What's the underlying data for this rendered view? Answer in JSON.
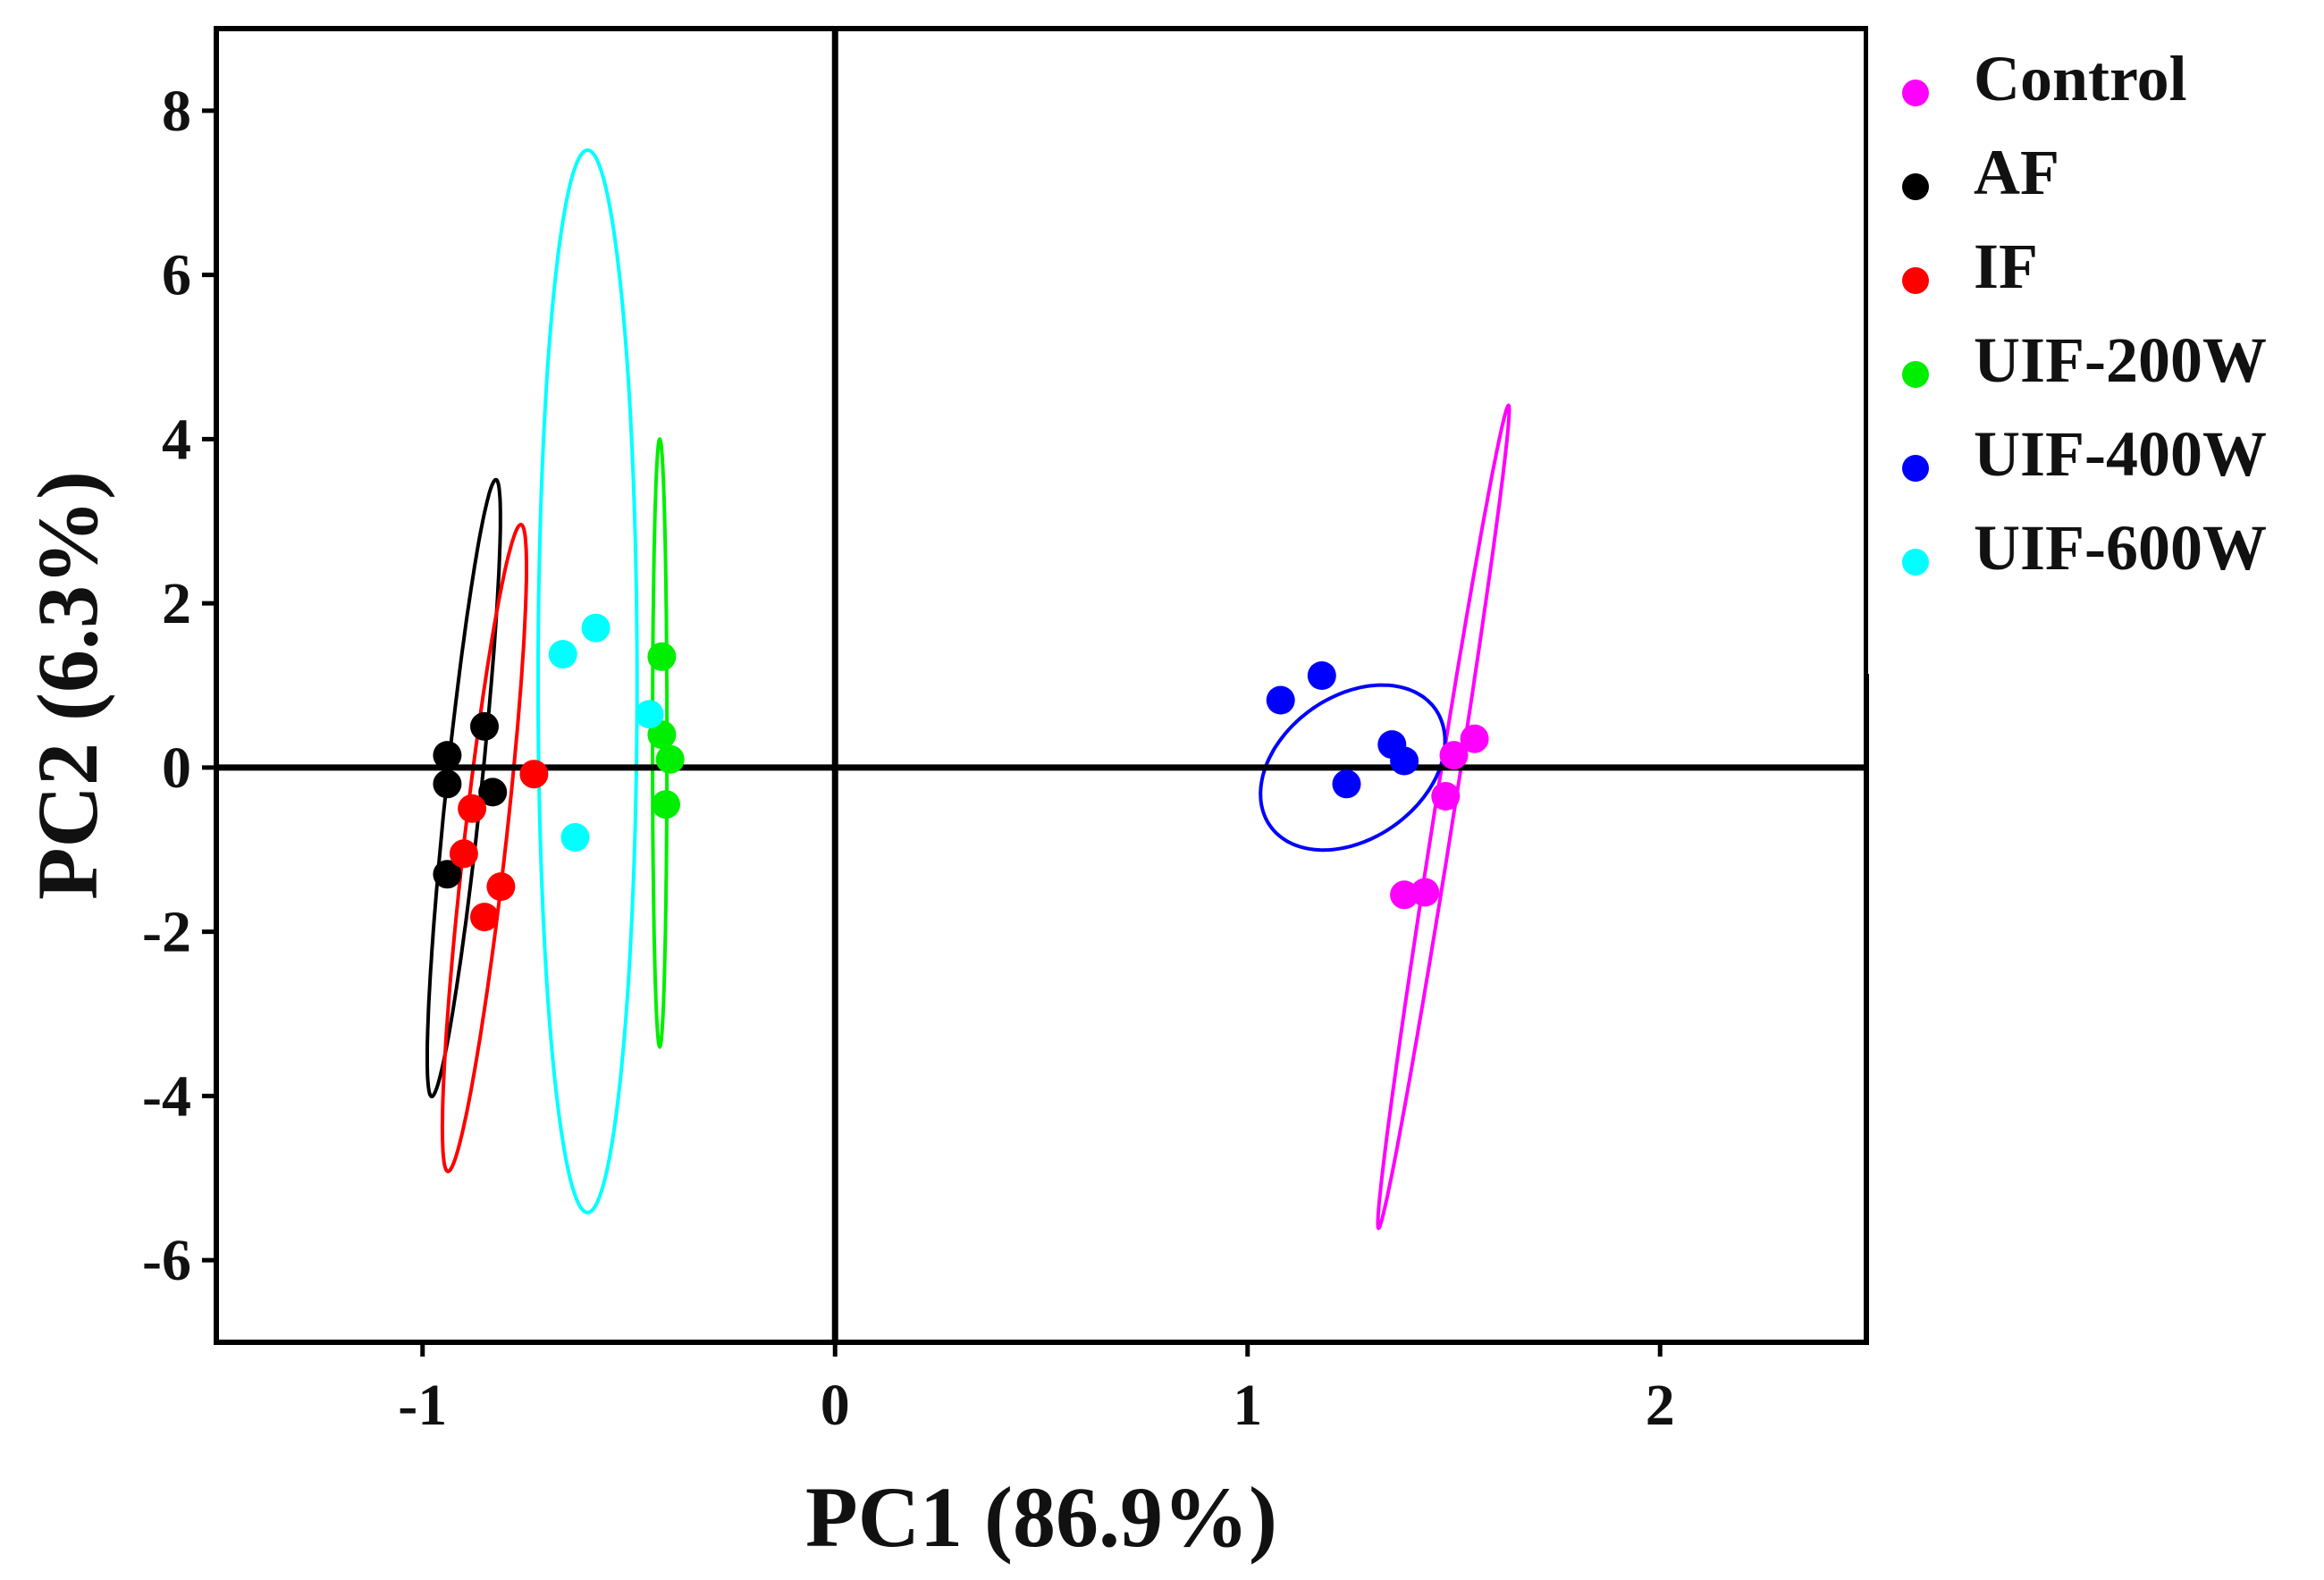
{
  "chart_data": {
    "type": "scatter",
    "title": "",
    "xlabel": "PC1 (86.9%)",
    "ylabel": "PC2 (6.3%)",
    "xlim": [
      -1.5,
      2.5
    ],
    "ylim": [
      -7,
      9
    ],
    "xticks": [
      -1,
      0,
      1,
      2
    ],
    "xtick_labels": [
      "-1",
      "0",
      "1",
      "2"
    ],
    "yticks": [
      -6,
      -4,
      -2,
      0,
      2,
      4,
      6,
      8
    ],
    "ytick_labels": [
      "-6",
      "-4",
      "-2",
      "0",
      "2",
      "4",
      "6",
      "8"
    ],
    "grid": false,
    "zero_lines": true,
    "legend_position": "right-top",
    "series": [
      {
        "name": "Control",
        "color": "#ff00ff",
        "points": [
          [
            1.5,
            0.15
          ],
          [
            1.55,
            0.35
          ],
          [
            1.48,
            -0.35
          ],
          [
            1.38,
            -1.55
          ],
          [
            1.43,
            -1.52
          ]
        ],
        "ellipse": {
          "cx": 1.475,
          "cy": -0.6,
          "rx": 5.05,
          "ry": 0.094,
          "angle_deg": 82.83
        }
      },
      {
        "name": "AF",
        "color": "#000000",
        "points": [
          [
            -0.85,
            0.5
          ],
          [
            -0.94,
            0.15
          ],
          [
            -0.94,
            -0.2
          ],
          [
            -0.83,
            -0.3
          ],
          [
            -0.94,
            -1.3
          ]
        ],
        "ellipse": {
          "cx": -0.9,
          "cy": -0.25,
          "rx": 3.769,
          "ry": 0.1705,
          "angle_deg": 85.26
        }
      },
      {
        "name": "IF",
        "color": "#ff0000",
        "points": [
          [
            -0.73,
            -0.08
          ],
          [
            -0.88,
            -0.5
          ],
          [
            -0.9,
            -1.05
          ],
          [
            -0.81,
            -1.45
          ],
          [
            -0.85,
            -1.82
          ]
        ],
        "ellipse": {
          "cx": -0.85,
          "cy": -0.98,
          "rx": 3.955,
          "ry": 0.2025,
          "angle_deg": 84.86
        }
      },
      {
        "name": "UIF-200W",
        "color": "#00ee00",
        "points": [
          [
            -0.42,
            1.35
          ],
          [
            -0.42,
            0.4
          ],
          [
            -0.4,
            0.1
          ],
          [
            -0.41,
            -0.45
          ]
        ],
        "ellipse": {
          "cx": -0.425,
          "cy": 0.3,
          "rx": 3.7,
          "ry": 0.07,
          "angle_deg": 90.0
        }
      },
      {
        "name": "UIF-400W",
        "color": "#0000ff",
        "points": [
          [
            1.18,
            1.12
          ],
          [
            1.08,
            0.82
          ],
          [
            1.35,
            0.28
          ],
          [
            1.38,
            0.08
          ],
          [
            1.24,
            -0.2
          ]
        ],
        "ellipse": {
          "cx": 1.255,
          "cy": 0.0,
          "rx": 0.774,
          "ry": 1.1,
          "angle_deg": -35.0
        }
      },
      {
        "name": "UIF-600W",
        "color": "#00ffff",
        "points": [
          [
            -0.58,
            1.7
          ],
          [
            -0.66,
            1.38
          ],
          [
            -0.45,
            0.65
          ],
          [
            -0.63,
            -0.85
          ]
        ],
        "ellipse": {
          "cx": -0.6,
          "cy": 1.05,
          "rx": 6.47,
          "ry": 0.48,
          "angle_deg": 90.0
        }
      }
    ]
  }
}
